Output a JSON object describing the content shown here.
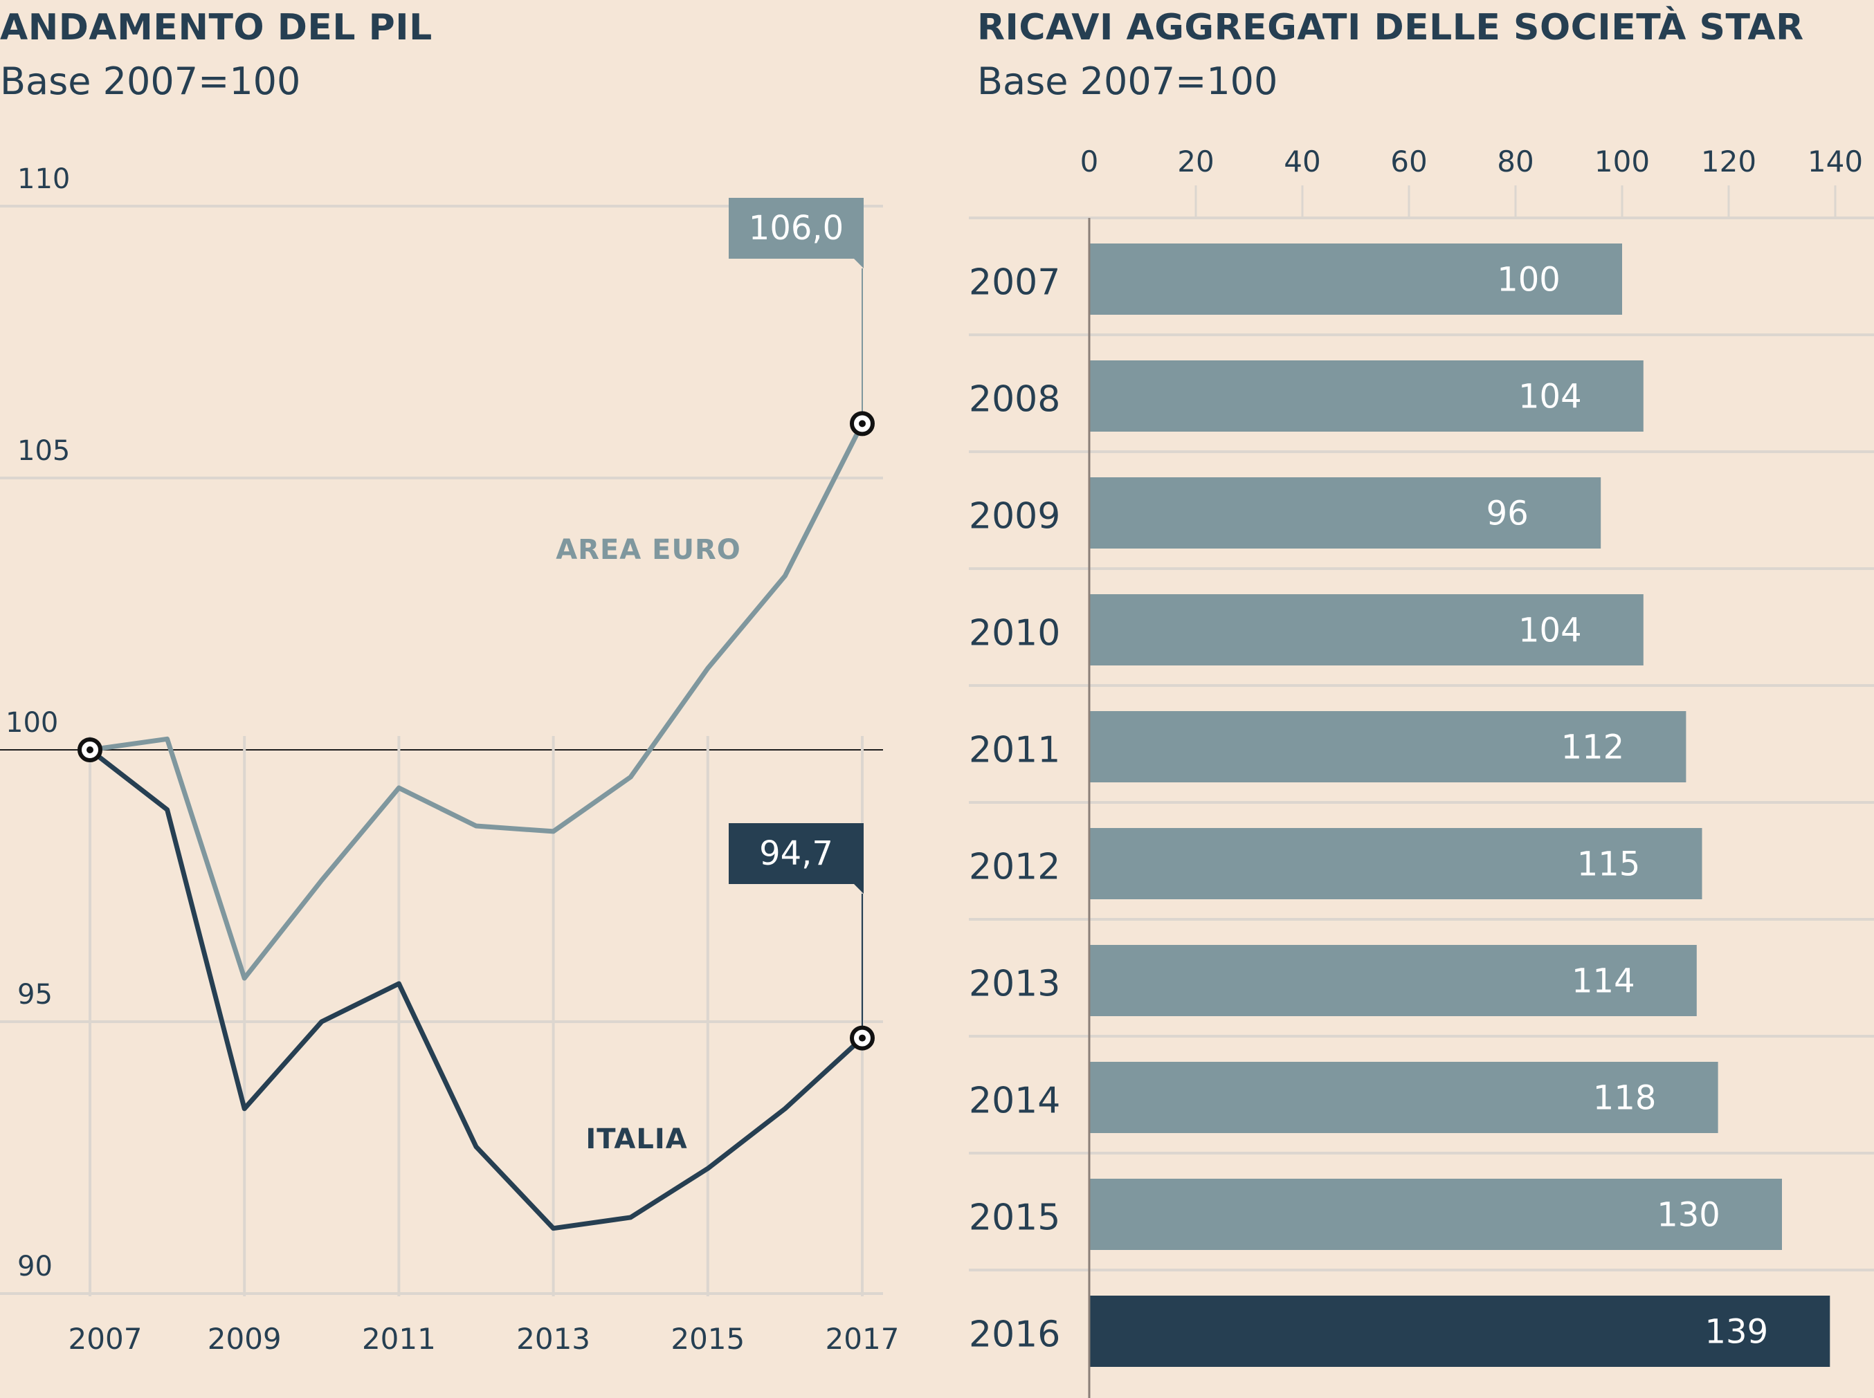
{
  "background": "#f5e6d7",
  "colors": {
    "dark": "#263f52",
    "grey": "#7f979e",
    "grid": "#dcd6cf",
    "axis": "#8a7f78"
  },
  "chart_data": [
    {
      "type": "line",
      "title": "ANDAMENTO DEL PIL",
      "subtitle": "Base 2007=100",
      "x_ticks": [
        "2007",
        "2009",
        "2011",
        "2013",
        "2015",
        "2017"
      ],
      "y_ticks": [
        "90",
        "95",
        "100",
        "105",
        "110"
      ],
      "xlim": [
        2007,
        2017
      ],
      "ylim": [
        90,
        110
      ],
      "baseline": 100,
      "grid": true,
      "series": [
        {
          "name": "AREA EURO",
          "color": "#7f979e",
          "x": [
            2007,
            2008,
            2008.5,
            2009,
            2010,
            2011,
            2012,
            2013,
            2014,
            2015,
            2016,
            2017
          ],
          "y": [
            100,
            100.2,
            98.0,
            95.8,
            97.6,
            99.3,
            98.6,
            98.5,
            99.5,
            101.5,
            103.2,
            106.0
          ],
          "callout": "106,0"
        },
        {
          "name": "ITALIA",
          "color": "#263f52",
          "x": [
            2007,
            2008,
            2009,
            2010,
            2011,
            2012,
            2013,
            2014,
            2015,
            2016,
            2017
          ],
          "y": [
            100,
            98.9,
            93.4,
            95.0,
            95.7,
            92.7,
            91.2,
            91.4,
            92.3,
            93.4,
            94.7
          ],
          "callout": "94,7"
        }
      ]
    },
    {
      "type": "bar",
      "title": "RICAVI AGGREGATI DELLE SOCIETÀ STAR",
      "subtitle": "Base 2007=100",
      "orientation": "horizontal",
      "x_ticks": [
        "0",
        "20",
        "40",
        "60",
        "80",
        "100",
        "120",
        "140"
      ],
      "xlim": [
        0,
        140
      ],
      "grid": true,
      "categories": [
        "2007",
        "2008",
        "2009",
        "2010",
        "2011",
        "2012",
        "2013",
        "2014",
        "2015",
        "2016"
      ],
      "values": [
        100,
        104,
        96,
        104,
        112,
        115,
        114,
        118,
        130,
        139
      ],
      "labels": [
        "100",
        "104",
        "96",
        "104",
        "112",
        "115",
        "114",
        "118",
        "130",
        "139"
      ],
      "bar_color": "#7f979e",
      "highlight_category": "2016",
      "highlight_color": "#263f52"
    }
  ]
}
